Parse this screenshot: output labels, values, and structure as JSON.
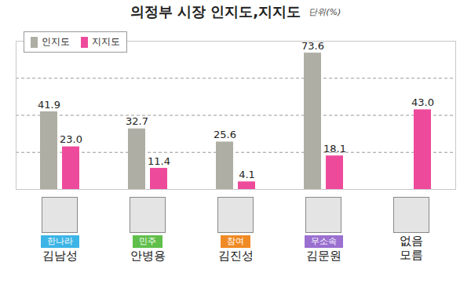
{
  "chart_data": {
    "type": "bar",
    "title": "의정부 시장 인지도,지지도",
    "subtitle": "단위(%)",
    "categories": [
      "김남성",
      "안병용",
      "김진성",
      "김문원",
      "없음\n모름"
    ],
    "party_labels": [
      "한나라",
      "민주",
      "참여",
      "무소속",
      null
    ],
    "series": [
      {
        "name": "인지도",
        "color": "#aeaea4",
        "values": [
          41.9,
          32.7,
          25.6,
          73.6,
          null
        ],
        "value_labels": [
          "41.9",
          "32.7",
          "25.6",
          "73.6",
          null
        ]
      },
      {
        "name": "지지도",
        "color": "#ee4a9c",
        "values": [
          23.0,
          11.4,
          4.1,
          18.1,
          43.0
        ],
        "value_labels": [
          "23.0",
          "11.4",
          "4.1",
          "18.1",
          "43.0"
        ]
      }
    ],
    "ylim": [
      0,
      80
    ],
    "yticks": [
      0,
      20,
      40,
      60
    ],
    "grid": true,
    "tick_labels": false,
    "data_labels": true,
    "legend": "top-left"
  }
}
